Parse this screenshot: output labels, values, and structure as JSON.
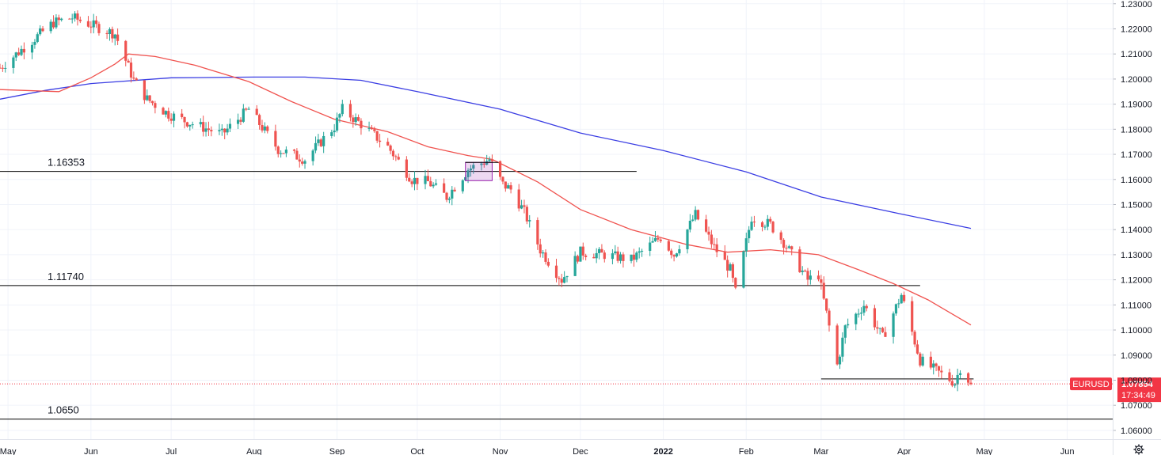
{
  "chart_data": {
    "type": "candlestick",
    "symbol": "EURUSD",
    "last_price": "1.07854",
    "countdown": "17:34:49",
    "x_ticks": [
      {
        "label": "May",
        "date": "2021-05-01"
      },
      {
        "label": "Jun",
        "date": "2021-06-01"
      },
      {
        "label": "Jul",
        "date": "2021-07-01"
      },
      {
        "label": "Aug",
        "date": "2021-08-01"
      },
      {
        "label": "Sep",
        "date": "2021-09-01"
      },
      {
        "label": "Oct",
        "date": "2021-10-01"
      },
      {
        "label": "Nov",
        "date": "2021-11-01"
      },
      {
        "label": "Dec",
        "date": "2021-12-01"
      },
      {
        "label": "2022",
        "date": "2022-01-01",
        "bold": true
      },
      {
        "label": "Feb",
        "date": "2022-02-01"
      },
      {
        "label": "Mar",
        "date": "2022-03-01"
      },
      {
        "label": "Apr",
        "date": "2022-04-01"
      },
      {
        "label": "May",
        "date": "2022-05-01"
      },
      {
        "label": "Jun",
        "date": "2022-06-01"
      }
    ],
    "y_ticks": [
      "1.23000",
      "1.22000",
      "1.21000",
      "1.20000",
      "1.19000",
      "1.18000",
      "1.17000",
      "1.16000",
      "1.15000",
      "1.14000",
      "1.13000",
      "1.12000",
      "1.11000",
      "1.10000",
      "1.09000",
      "1.08000",
      "1.07000",
      "1.06000"
    ],
    "ylim": [
      1.0565,
      1.2315
    ],
    "xlim": [
      "2021-04-28",
      "2022-06-18"
    ],
    "grid": true,
    "horizontal_levels": [
      {
        "label": "1.16353",
        "value": 1.1632,
        "start": "2021-04-28",
        "end": "2021-12-22"
      },
      {
        "label": "1.11740",
        "value": 1.1177,
        "start": "2021-04-28",
        "end": "2022-04-07"
      },
      {
        "label": "1.0650",
        "value": 1.0645,
        "start": "2021-04-28",
        "end": "2022-06-18"
      },
      {
        "label": "",
        "value": 1.0805,
        "start": "2022-03-01",
        "end": "2022-04-27"
      }
    ],
    "price_anchors": [
      [
        "2021-04-28",
        1.2045
      ],
      [
        "2021-05-18",
        1.2225
      ],
      [
        "2021-05-25",
        1.2245
      ],
      [
        "2021-06-10",
        1.218
      ],
      [
        "2021-06-17",
        1.1995
      ],
      [
        "2021-06-22",
        1.192
      ],
      [
        "2021-06-30",
        1.186
      ],
      [
        "2021-07-07",
        1.183
      ],
      [
        "2021-07-20",
        1.178
      ],
      [
        "2021-07-30",
        1.188
      ],
      [
        "2021-08-10",
        1.172
      ],
      [
        "2021-08-20",
        1.168
      ],
      [
        "2021-08-31",
        1.181
      ],
      [
        "2021-09-03",
        1.188
      ],
      [
        "2021-09-10",
        1.182
      ],
      [
        "2021-09-20",
        1.173
      ],
      [
        "2021-09-29",
        1.16
      ],
      [
        "2021-10-05",
        1.159
      ],
      [
        "2021-10-12",
        1.153
      ],
      [
        "2021-10-20",
        1.164
      ],
      [
        "2021-10-28",
        1.168
      ],
      [
        "2021-11-02",
        1.158
      ],
      [
        "2021-11-05",
        1.156
      ],
      [
        "2021-11-10",
        1.147
      ],
      [
        "2021-11-16",
        1.132
      ],
      [
        "2021-11-24",
        1.12
      ],
      [
        "2021-12-01",
        1.131
      ],
      [
        "2021-12-10",
        1.13
      ],
      [
        "2021-12-20",
        1.128
      ],
      [
        "2021-12-31",
        1.137
      ],
      [
        "2022-01-05",
        1.13
      ],
      [
        "2022-01-13",
        1.146
      ],
      [
        "2022-01-20",
        1.133
      ],
      [
        "2022-01-26",
        1.124
      ],
      [
        "2022-01-28",
        1.115
      ],
      [
        "2022-02-03",
        1.145
      ],
      [
        "2022-02-10",
        1.142
      ],
      [
        "2022-02-15",
        1.135
      ],
      [
        "2022-02-24",
        1.12
      ],
      [
        "2022-02-28",
        1.122
      ],
      [
        "2022-03-07",
        1.086
      ],
      [
        "2022-03-10",
        1.101
      ],
      [
        "2022-03-17",
        1.11
      ],
      [
        "2022-03-24",
        1.097
      ],
      [
        "2022-03-31",
        1.114
      ],
      [
        "2022-04-07",
        1.088
      ],
      [
        "2022-04-14",
        1.083
      ],
      [
        "2022-04-20",
        1.079
      ],
      [
        "2022-04-22",
        1.085
      ],
      [
        "2022-04-26",
        1.0785
      ]
    ],
    "sma_short": [
      [
        "2021-04-28",
        1.1958
      ],
      [
        "2021-05-20",
        1.195
      ],
      [
        "2021-06-01",
        1.2005
      ],
      [
        "2021-06-10",
        1.206
      ],
      [
        "2021-06-15",
        1.21
      ],
      [
        "2021-06-25",
        1.209
      ],
      [
        "2021-07-10",
        1.2055
      ],
      [
        "2021-07-30",
        1.199
      ],
      [
        "2021-08-15",
        1.191
      ],
      [
        "2021-08-31",
        1.184
      ],
      [
        "2021-09-20",
        1.179
      ],
      [
        "2021-10-05",
        1.173
      ],
      [
        "2021-10-20",
        1.1695
      ],
      [
        "2021-10-29",
        1.168
      ],
      [
        "2021-11-15",
        1.159
      ],
      [
        "2021-12-01",
        1.148
      ],
      [
        "2021-12-20",
        1.14
      ],
      [
        "2022-01-10",
        1.134
      ],
      [
        "2022-01-25",
        1.131
      ],
      [
        "2022-02-10",
        1.132
      ],
      [
        "2022-02-28",
        1.13
      ],
      [
        "2022-03-15",
        1.124
      ],
      [
        "2022-03-28",
        1.1185
      ],
      [
        "2022-04-10",
        1.112
      ],
      [
        "2022-04-26",
        1.102
      ]
    ],
    "sma_long": [
      [
        "2021-04-28",
        1.192
      ],
      [
        "2021-05-15",
        1.1955
      ],
      [
        "2021-06-01",
        1.1982
      ],
      [
        "2021-07-01",
        1.2005
      ],
      [
        "2021-08-01",
        1.2008
      ],
      [
        "2021-08-20",
        1.2008
      ],
      [
        "2021-09-10",
        1.1995
      ],
      [
        "2021-10-01",
        1.195
      ],
      [
        "2021-11-01",
        1.188
      ],
      [
        "2021-12-01",
        1.1785
      ],
      [
        "2022-01-01",
        1.1715
      ],
      [
        "2022-02-01",
        1.163
      ],
      [
        "2022-03-01",
        1.153
      ],
      [
        "2022-04-01",
        1.146
      ],
      [
        "2022-04-26",
        1.1405
      ]
    ],
    "colors": {
      "up": "#26a69a",
      "down": "#ef5350",
      "sma_short": "#f0534f",
      "sma_long": "#3b3ee3",
      "badge": "#f23645",
      "level": "#000000"
    }
  }
}
